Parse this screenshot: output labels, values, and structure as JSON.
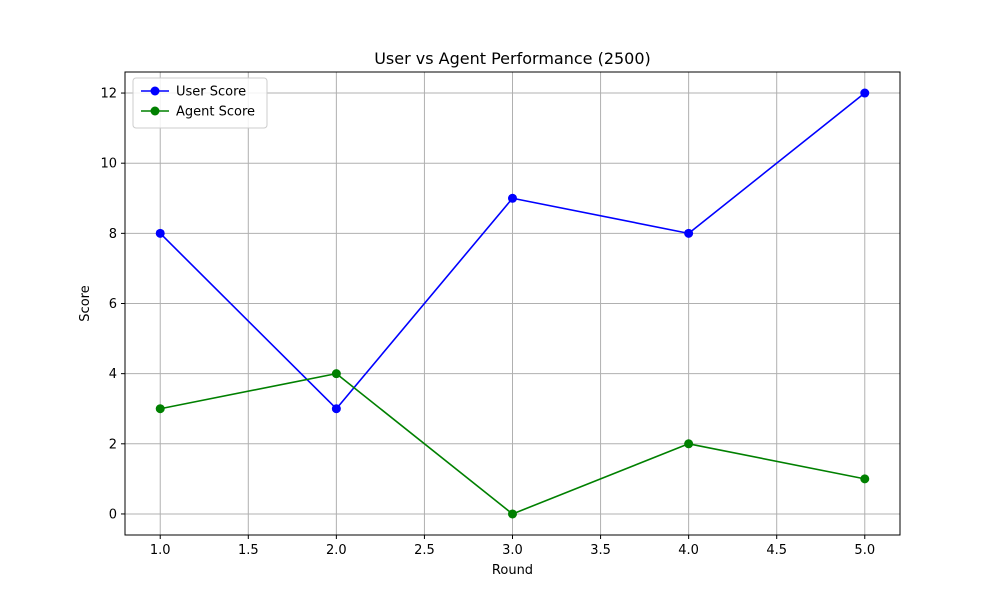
{
  "chart_data": {
    "type": "line",
    "title": "User vs Agent Performance (2500)",
    "xlabel": "Round",
    "ylabel": "Score",
    "x": [
      1,
      2,
      3,
      4,
      5
    ],
    "xlim": [
      0.8,
      5.2
    ],
    "ylim": [
      -0.6,
      12.6
    ],
    "xticks": [
      1.0,
      1.5,
      2.0,
      2.5,
      3.0,
      3.5,
      4.0,
      4.5,
      5.0
    ],
    "xtick_labels": [
      "1.0",
      "1.5",
      "2.0",
      "2.5",
      "3.0",
      "3.5",
      "4.0",
      "4.5",
      "5.0"
    ],
    "yticks": [
      0,
      2,
      4,
      6,
      8,
      10,
      12
    ],
    "ytick_labels": [
      "0",
      "2",
      "4",
      "6",
      "8",
      "10",
      "12"
    ],
    "grid": true,
    "legend_position": "upper-left",
    "series": [
      {
        "name": "User Score",
        "color": "#0000ff",
        "marker": "circle",
        "values": [
          8,
          3,
          9,
          8,
          12
        ]
      },
      {
        "name": "Agent Score",
        "color": "#008000",
        "marker": "circle",
        "values": [
          3,
          4,
          0,
          2,
          1
        ]
      }
    ]
  }
}
